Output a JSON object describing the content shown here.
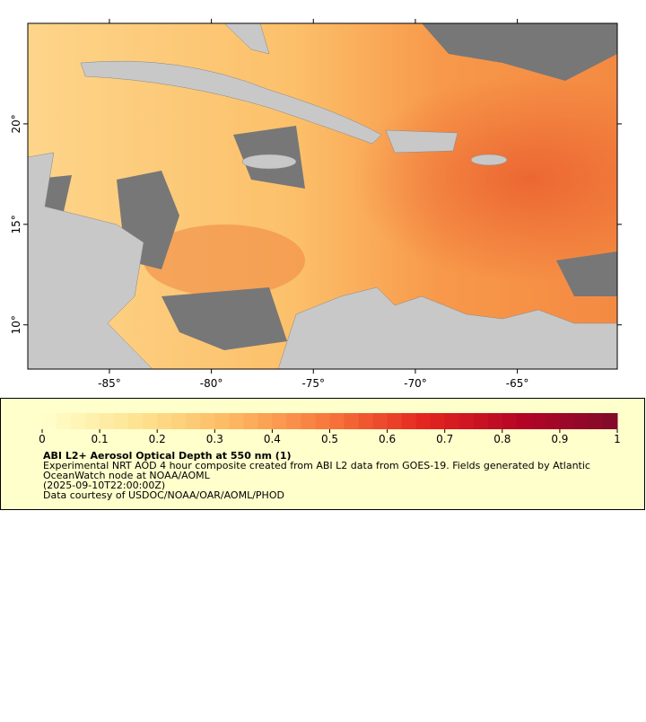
{
  "map": {
    "xlim": [
      -89,
      -60.1
    ],
    "ylim": [
      7.8,
      25
    ],
    "xticks": [
      {
        "value": -85,
        "label": "-85°"
      },
      {
        "value": -80,
        "label": "-80°"
      },
      {
        "value": -75,
        "label": "-75°"
      },
      {
        "value": -70,
        "label": "-70°"
      },
      {
        "value": -65,
        "label": "-65°"
      }
    ],
    "yticks": [
      {
        "value": 10,
        "label": "10°"
      },
      {
        "value": 15,
        "label": "15°"
      },
      {
        "value": 20,
        "label": "20°"
      }
    ]
  },
  "colorbar": {
    "lim": [
      0,
      1
    ],
    "ticks": [
      0,
      0.1,
      0.2,
      0.3,
      0.4,
      0.5,
      0.6,
      0.7,
      0.8,
      0.9,
      1
    ],
    "steps": 40,
    "colors": [
      "#ffffcc",
      "#fee391",
      "#fdb860",
      "#f7763c",
      "#e3241f",
      "#b40426",
      "#7f0a2a"
    ]
  },
  "legend": {
    "title": "ABI L2+ Aerosol Optical Depth at 550 nm (1)",
    "lines": [
      "Experimental NRT AOD 4 hour composite created from ABI L2 data from GOES-19. Fields generated by Atlantic",
      "OceanWatch node at NOAA/AOML",
      "(2025-09-10T22:00:00Z)",
      "Data courtesy of USDOC/NOAA/OAR/AOML/PHOD"
    ]
  }
}
